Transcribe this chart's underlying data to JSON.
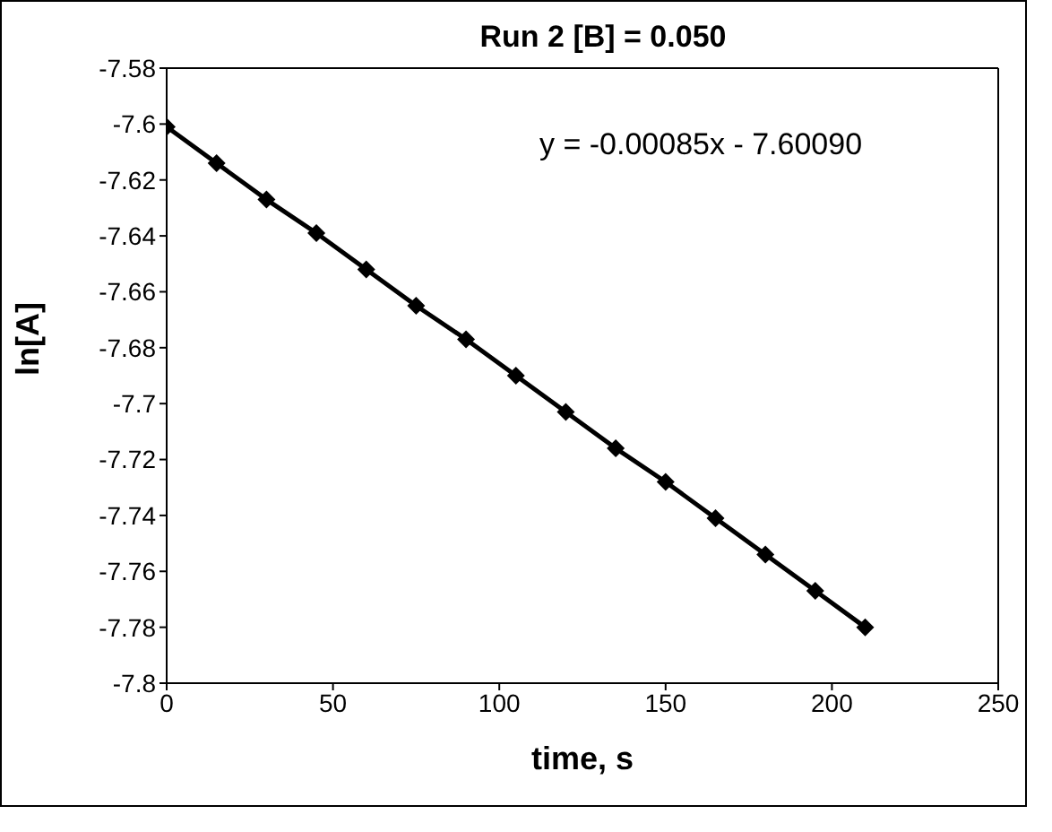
{
  "chart_data": {
    "type": "line",
    "title": "Run 2 [B] = 0.050",
    "xlabel": "time, s",
    "ylabel": "ln[A]",
    "x": [
      0,
      15,
      30,
      45,
      60,
      75,
      90,
      105,
      120,
      135,
      150,
      165,
      180,
      195,
      210
    ],
    "series": [
      {
        "color": "#000000",
        "values": [
          -7.601,
          -7.614,
          -7.627,
          -7.639,
          -7.652,
          -7.665,
          -7.677,
          -7.69,
          -7.703,
          -7.716,
          -7.728,
          -7.741,
          -7.754,
          -7.767,
          -7.78
        ]
      }
    ],
    "xlim": [
      0,
      250
    ],
    "xticks": [
      0,
      50,
      100,
      150,
      200,
      250
    ],
    "ylim": [
      -7.8,
      -7.58
    ],
    "yticks": [
      -7.8,
      -7.78,
      -7.76,
      -7.74,
      -7.72,
      -7.7,
      -7.68,
      -7.66,
      -7.64,
      -7.62,
      -7.6,
      -7.58
    ],
    "annotations": [
      "y = -0.00085x - 7.60090"
    ],
    "marker": "diamond",
    "line_style": "solid",
    "grid": false,
    "legend": false
  }
}
